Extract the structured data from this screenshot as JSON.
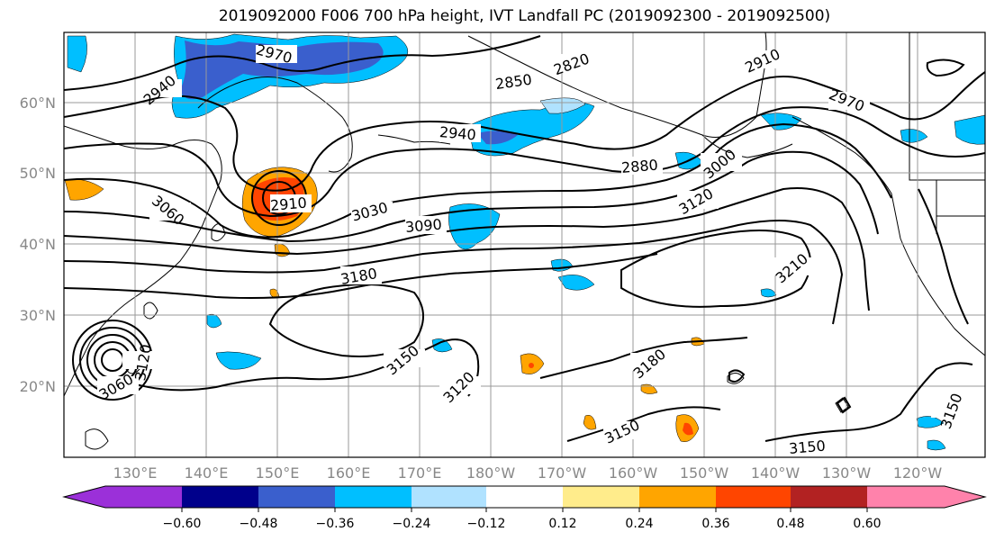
{
  "title": "2019092000 F006 700 hPa height, IVT Landfall PC (2019092300 - 2019092500)",
  "lat_labels": [
    "60°N",
    "50°N",
    "40°N",
    "30°N",
    "20°N"
  ],
  "lon_labels": [
    "130°E",
    "140°E",
    "150°E",
    "160°E",
    "170°E",
    "180°W",
    "170°W",
    "160°W",
    "150°W",
    "140°W",
    "130°W",
    "120°W"
  ],
  "contour_labels": [
    "2970",
    "2820",
    "2910",
    "2940",
    "2850",
    "2970",
    "2940",
    "2880",
    "3000",
    "3060",
    "2910",
    "3030",
    "3090",
    "3120",
    "3180",
    "3210",
    "3150",
    "3120",
    "3150",
    "3180",
    "3150",
    "3150",
    "3060",
    "3120"
  ],
  "colorbar": {
    "tick_labels": [
      "−0.60",
      "−0.48",
      "−0.36",
      "−0.24",
      "−0.12",
      "0.12",
      "0.24",
      "0.36",
      "0.48",
      "0.60"
    ],
    "colors": [
      "#9b30d9",
      "#00008b",
      "#3a5fcd",
      "#00bfff",
      "#b0e2ff",
      "#ffffff",
      "#ffec8b",
      "#ffa500",
      "#ff4500",
      "#b22222",
      "#ff82ab"
    ]
  },
  "colors": {
    "grid": "#999999",
    "contour": "#000000",
    "neg_light": "#00bfff",
    "neg_mid": "#3a5fcd",
    "pos_orange": "#ffa500",
    "pos_red": "#ff4500"
  }
}
